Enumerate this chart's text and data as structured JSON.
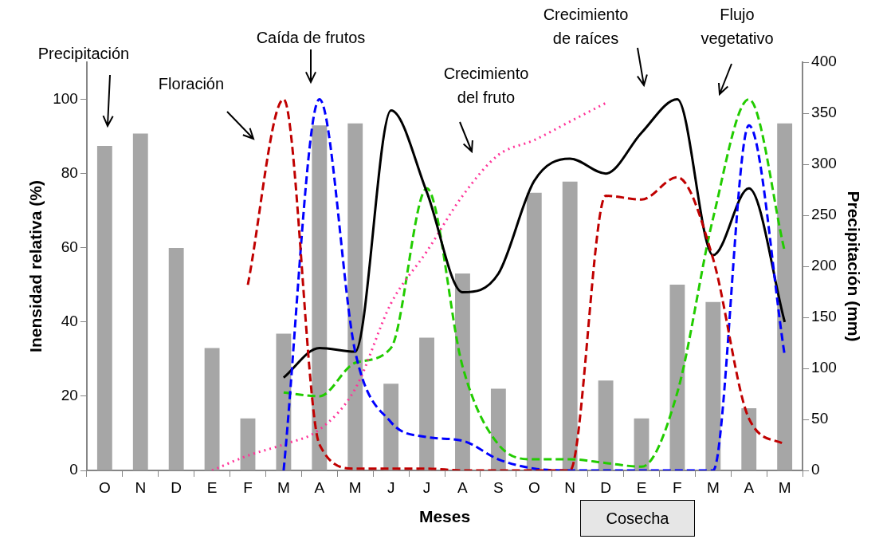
{
  "chart_data": {
    "type": "bar",
    "xlabel": "Meses",
    "ylabel": "Inensidad relativa (%)",
    "y2label": "Precipitación (mm)",
    "categories": [
      "O",
      "N",
      "D",
      "E",
      "F",
      "M",
      "A",
      "M",
      "J",
      "J",
      "A",
      "S",
      "O",
      "N",
      "D",
      "E",
      "F",
      "M",
      "A",
      "M"
    ],
    "ylim": [
      0,
      110
    ],
    "yticks": [
      0,
      20,
      40,
      60,
      80,
      100
    ],
    "y2lim": [
      0,
      400
    ],
    "y2ticks": [
      0,
      50,
      100,
      150,
      200,
      250,
      300,
      350,
      400
    ],
    "grid": false,
    "legend": false,
    "marker": "none",
    "series": [
      {
        "axis": "y2",
        "color": "#a6a6a6",
        "values": [
          318,
          330,
          218,
          120,
          51,
          134,
          338,
          340,
          85,
          130,
          193,
          80,
          272,
          283,
          88,
          51,
          182,
          165,
          61,
          340
        ]
      },
      {
        "type": "line",
        "color": "#c00000",
        "line_style": "dashed",
        "values": [
          null,
          null,
          null,
          null,
          50,
          100,
          7,
          0.5,
          0.5,
          0.5,
          0,
          0,
          0,
          0,
          74,
          73,
          79,
          57,
          14,
          7
        ]
      },
      {
        "type": "line",
        "color": "#0000ff",
        "line_style": "dashed",
        "values": [
          null,
          null,
          null,
          null,
          null,
          0,
          100,
          32,
          13,
          9,
          8,
          3,
          0.5,
          0,
          0,
          0,
          0,
          0,
          93,
          31
        ]
      },
      {
        "type": "line",
        "color": "#000000",
        "line_style": "solid",
        "values": [
          null,
          null,
          null,
          null,
          null,
          25,
          33,
          32,
          97,
          75,
          48,
          53,
          78,
          84,
          80,
          91,
          100,
          58,
          76,
          40
        ]
      },
      {
        "type": "line",
        "color": "#ff3399",
        "line_style": "dotted",
        "values": [
          null,
          null,
          null,
          0,
          4,
          7,
          11,
          22,
          45,
          59,
          74,
          85,
          89,
          94,
          99,
          null,
          null,
          null,
          null,
          null
        ]
      },
      {
        "type": "line",
        "color": "#22cc00",
        "line_style": "dashed",
        "values": [
          null,
          null,
          null,
          null,
          null,
          21,
          20,
          29,
          33,
          76,
          28,
          7,
          3,
          3,
          2,
          1,
          21,
          68,
          100,
          59
        ]
      }
    ],
    "annotations": [
      "Precipitación",
      "Floración",
      "Caída de frutos",
      "Crecimiento del fruto",
      "Crecimiento de raíces",
      "Flujo vegetativo",
      "Cosecha"
    ]
  }
}
